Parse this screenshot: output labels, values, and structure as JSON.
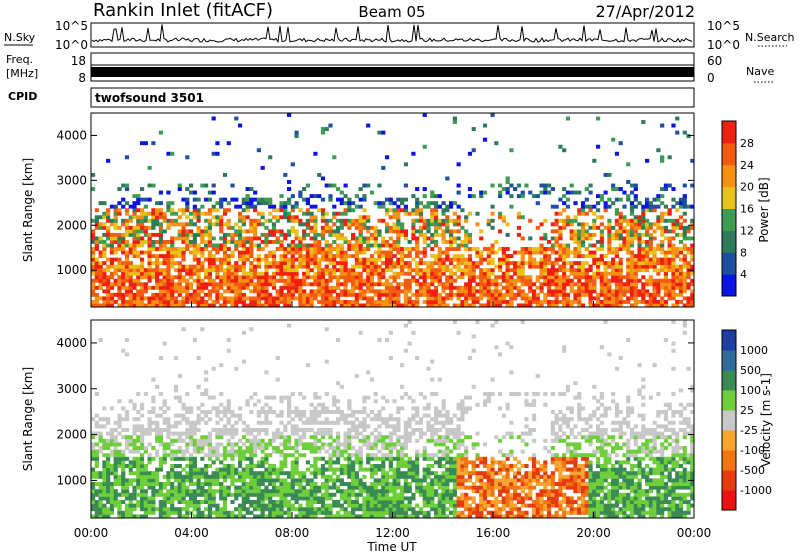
{
  "header": {
    "title": "Rankin Inlet (fitACF)",
    "beam": "Beam 05",
    "date": "27/Apr/2012"
  },
  "noise_panel": {
    "left_label": "N.Sky",
    "right_label": "N.Search",
    "left_ticks": [
      "10^5",
      "10^0"
    ],
    "right_ticks": [
      "10^5",
      "10^0"
    ]
  },
  "freq_panel": {
    "left_label_line1": "Freq.",
    "left_label_line2": "[MHz]",
    "left_ticks": [
      "18",
      "8"
    ],
    "right_label": "Nave",
    "right_ticks": [
      "60",
      "0"
    ]
  },
  "cpid_panel": {
    "label": "CPID",
    "value": "twofsound 3501"
  },
  "chart_data": [
    {
      "type": "heatmap",
      "name": "power",
      "ylabel": "Slant Range [km]",
      "ylim": [
        180,
        4500
      ],
      "yticks": [
        1000,
        2000,
        3000,
        4000
      ],
      "colorbar_label": "Power [dB]",
      "colorbar_ticks": [
        "4",
        "8",
        "12",
        "16",
        "20",
        "24",
        "28"
      ],
      "colors": [
        "#0a14e6",
        "#1f4fa0",
        "#2f7a5a",
        "#3d9b52",
        "#e8c21a",
        "#f59214",
        "#f35a12",
        "#ef2010"
      ],
      "grid": false
    },
    {
      "type": "heatmap",
      "name": "velocity",
      "ylabel": "Slant Range [km]",
      "ylim": [
        180,
        4500
      ],
      "yticks": [
        1000,
        2000,
        3000,
        4000
      ],
      "xlabel": "Time UT",
      "xticks": [
        "00:00",
        "04:00",
        "08:00",
        "12:00",
        "16:00",
        "20:00",
        "00:00"
      ],
      "colorbar_label": "Velocity [m s-1]",
      "colorbar_ticks": [
        "1000",
        "500",
        "100",
        "25",
        "-25",
        "-100",
        "-500",
        "-1000"
      ],
      "colors": [
        "#1f3fa0",
        "#2f6b9a",
        "#3a8a55",
        "#6fcf3a",
        "#c8c8c8",
        "#f7a531",
        "#f17512",
        "#e63a12",
        "#ee1010"
      ],
      "grid": false
    }
  ]
}
